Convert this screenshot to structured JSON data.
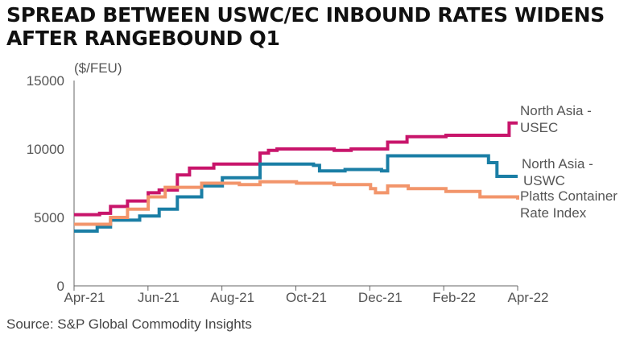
{
  "title": "SPREAD BETWEEN USWC/EC INBOUND RATES WIDENS\nAFTER RANGEBOUND Q1",
  "source": "Source: S&P Global Commodity Insights",
  "chart_data": {
    "type": "line",
    "title": "SPREAD BETWEEN USWC/EC INBOUND RATES WIDENS AFTER RANGEBOUND Q1",
    "ylabel": "($/FEU)",
    "ylim": [
      0,
      15000
    ],
    "yticks": [
      "15000",
      "10000",
      "5000",
      "0"
    ],
    "xticks": [
      "Apr-21",
      "Jun-21",
      "Aug-21",
      "Oct-21",
      "Dec-21",
      "Feb-22",
      "Apr-22"
    ],
    "grid": false,
    "legend": "right, end of lines",
    "series": [
      {
        "name": "North Asia - USEC",
        "label_lines": [
          "North Asia -",
          "USEC"
        ],
        "color": "#c8156b",
        "points": [
          [
            "2021-04-01",
            5200
          ],
          [
            "2021-04-22",
            5300
          ],
          [
            "2021-05-01",
            5800
          ],
          [
            "2021-05-15",
            6200
          ],
          [
            "2021-06-01",
            6800
          ],
          [
            "2021-06-10",
            7000
          ],
          [
            "2021-06-25",
            8100
          ],
          [
            "2021-07-05",
            8600
          ],
          [
            "2021-07-25",
            8900
          ],
          [
            "2021-09-01",
            9700
          ],
          [
            "2021-09-08",
            9900
          ],
          [
            "2021-09-15",
            10000
          ],
          [
            "2021-11-01",
            9900
          ],
          [
            "2021-11-15",
            10000
          ],
          [
            "2021-12-15",
            10500
          ],
          [
            "2021-12-31",
            10900
          ],
          [
            "2022-02-01",
            11000
          ],
          [
            "2022-03-25",
            11900
          ],
          [
            "2022-04-01",
            11900
          ]
        ]
      },
      {
        "name": "North Asia - USWC",
        "label_lines": [
          "North Asia -",
          "USWC"
        ],
        "color": "#1a7ea5",
        "points": [
          [
            "2021-04-01",
            4000
          ],
          [
            "2021-04-20",
            4300
          ],
          [
            "2021-05-01",
            4800
          ],
          [
            "2021-05-25",
            5100
          ],
          [
            "2021-06-10",
            5600
          ],
          [
            "2021-06-25",
            6500
          ],
          [
            "2021-07-15",
            7300
          ],
          [
            "2021-08-01",
            7900
          ],
          [
            "2021-09-01",
            8900
          ],
          [
            "2021-10-15",
            8800
          ],
          [
            "2021-10-20",
            8400
          ],
          [
            "2021-11-10",
            8500
          ],
          [
            "2021-12-10",
            8400
          ],
          [
            "2021-12-15",
            9500
          ],
          [
            "2022-03-01",
            9500
          ],
          [
            "2022-03-08",
            9000
          ],
          [
            "2022-03-15",
            8000
          ],
          [
            "2022-04-01",
            8000
          ]
        ]
      },
      {
        "name": "Platts Container Rate Index",
        "label_lines": [
          "Platts Container",
          "Rate Index"
        ],
        "color": "#f2956b",
        "points": [
          [
            "2021-04-01",
            4500
          ],
          [
            "2021-05-01",
            5000
          ],
          [
            "2021-05-15",
            5600
          ],
          [
            "2021-06-01",
            6500
          ],
          [
            "2021-06-15",
            7200
          ],
          [
            "2021-07-01",
            7200
          ],
          [
            "2021-07-15",
            7500
          ],
          [
            "2021-08-15",
            7400
          ],
          [
            "2021-09-01",
            7600
          ],
          [
            "2021-10-01",
            7500
          ],
          [
            "2021-11-01",
            7400
          ],
          [
            "2021-12-01",
            7100
          ],
          [
            "2021-12-05",
            6800
          ],
          [
            "2021-12-15",
            7300
          ],
          [
            "2022-01-01",
            7100
          ],
          [
            "2022-02-01",
            6900
          ],
          [
            "2022-03-01",
            6500
          ],
          [
            "2022-04-01",
            6300
          ]
        ]
      }
    ]
  }
}
